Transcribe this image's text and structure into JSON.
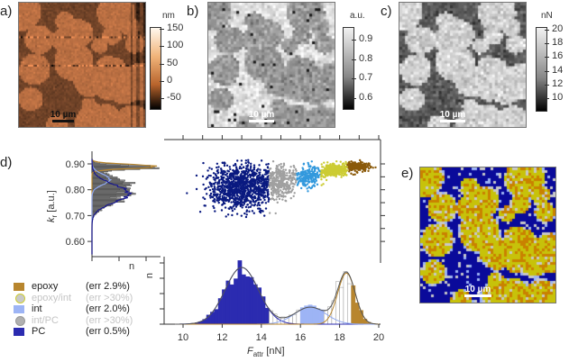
{
  "panels": {
    "a": {
      "label": "a)",
      "unit": "nm",
      "ticks": [
        "150",
        "100",
        "50",
        "0",
        "-50"
      ],
      "scalebar": "10 µm"
    },
    "b": {
      "label": "b)",
      "unit": "a.u.",
      "ticks": [
        "0.9",
        "0.8",
        "0.7",
        "0.6"
      ],
      "scalebar": "10 µm"
    },
    "c": {
      "label": "c)",
      "unit": "nN",
      "ticks": [
        "20",
        "18",
        "16",
        "14",
        "12",
        "10"
      ],
      "scalebar": "10 µm"
    },
    "d": {
      "label": "d)"
    },
    "e": {
      "label": "e)",
      "scalebar": "10 µm"
    }
  },
  "legend": [
    {
      "name": "epoxy",
      "err": "(err 2.9%)",
      "color": "#b8862e",
      "shape": "square",
      "dim": false
    },
    {
      "name": "epoxy/int",
      "err": "(err >30%)",
      "color": "#c8c8c8",
      "border": "#cccc33",
      "shape": "circle",
      "dim": true
    },
    {
      "name": "int",
      "err": "(err 2.0%)",
      "color": "#9db4f5",
      "shape": "square",
      "dim": false
    },
    {
      "name": "int/PC",
      "err": "(err >30%)",
      "color": "#b0b0b0",
      "shape": "circle",
      "dim": true
    },
    {
      "name": "PC",
      "err": "(err 0.5%)",
      "color": "#2b2bb0",
      "shape": "square",
      "dim": false
    }
  ],
  "colors": {
    "PC": "#0a1a80",
    "int_PC": "#a0a0a0",
    "int": "#3399dd",
    "epoxy_int": "#cccc33",
    "epoxy": "#8b5a0a"
  },
  "chart_data": [
    {
      "type": "scatter",
      "xlabel": "F_attr [nN]",
      "ylabel": "k_r [a.u.]",
      "xlim": [
        9,
        20
      ],
      "ylim": [
        0.55,
        0.93
      ],
      "yticks": [
        "0.90",
        "0.80",
        "0.70",
        "0.60"
      ],
      "clusters": [
        {
          "name": "PC",
          "F_range": [
            10,
            14.4
          ],
          "k_center": 0.8
        },
        {
          "name": "int/PC",
          "F_range": [
            14.4,
            15.8
          ],
          "k_center": 0.83
        },
        {
          "name": "int",
          "F_range": [
            15.8,
            17.0
          ],
          "k_center": 0.85
        },
        {
          "name": "epoxy/int",
          "F_range": [
            17.0,
            18.4
          ],
          "k_center": 0.87
        },
        {
          "name": "epoxy",
          "F_range": [
            18.4,
            19.8
          ],
          "k_center": 0.89
        }
      ]
    },
    {
      "type": "bar",
      "orientation": "horizontal",
      "xlabel": "n",
      "ylabel": "k_r [a.u.]",
      "ylim": [
        0.55,
        0.93
      ],
      "peaks": [
        {
          "name": "epoxy",
          "center": 0.89
        },
        {
          "name": "int",
          "center": 0.84
        },
        {
          "name": "PC",
          "center": 0.78
        }
      ]
    },
    {
      "type": "bar",
      "xlabel": "F_attr [nN]",
      "ylabel": "n",
      "xlim": [
        9,
        20
      ],
      "xticks": [
        "10",
        "12",
        "14",
        "16",
        "18",
        "20"
      ],
      "gaussian_fits": [
        {
          "name": "PC",
          "center": 13.0,
          "sigma": 0.85,
          "relative_height": 1.0
        },
        {
          "name": "int",
          "center": 16.5,
          "sigma": 0.8,
          "relative_height": 0.3
        },
        {
          "name": "epoxy",
          "center": 18.35,
          "sigma": 0.45,
          "relative_height": 0.9
        }
      ]
    }
  ],
  "axes": {
    "hist_x_label": "n",
    "hist_y_label": "n",
    "f_label": "F",
    "f_sub": "attr",
    "f_unit": " [nN]",
    "k_label": "k",
    "k_sub": "r",
    "k_unit": " [a.u.]"
  }
}
